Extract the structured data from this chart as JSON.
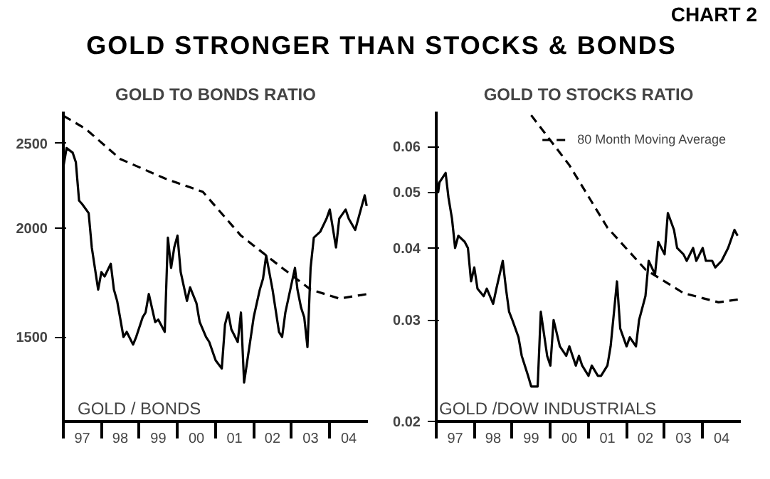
{
  "chart_data": [
    {
      "type": "line",
      "title": "GOLD TO BONDS RATIO",
      "annotations": [
        "CHART 2",
        "GOLD STRONGER THAN STOCKS & BONDS",
        "GOLD / BONDS"
      ],
      "log": "y",
      "grid": false,
      "legend": false,
      "marker": "none",
      "xlim": [
        "1997-01",
        "2005-01"
      ],
      "ylim": [
        1200,
        2720
      ],
      "yticks": [
        1500,
        2000,
        2500
      ],
      "xticks": [
        {
          "value": "1997-01",
          "label": null
        },
        {
          "value": "1997-07",
          "label": "97"
        },
        {
          "value": "1998-01",
          "label": null
        },
        {
          "value": "1998-07",
          "label": "98"
        },
        {
          "value": "1999-01",
          "label": null
        },
        {
          "value": "1999-07",
          "label": "99"
        },
        {
          "value": "2000-01",
          "label": null
        },
        {
          "value": "2000-07",
          "label": "00"
        },
        {
          "value": "2001-01",
          "label": null
        },
        {
          "value": "2001-07",
          "label": "01"
        },
        {
          "value": "2002-01",
          "label": null
        },
        {
          "value": "2002-07",
          "label": "02"
        },
        {
          "value": "2003-01",
          "label": null
        },
        {
          "value": "2003-07",
          "label": "03"
        },
        {
          "value": "2004-01",
          "label": null
        },
        {
          "value": "2004-07",
          "label": "04"
        }
      ],
      "series": [
        {
          "color": "#000000",
          "line_style": "solid",
          "x": [
            "1997-01",
            "1997-02",
            "1997-04",
            "1997-05",
            "1997-06",
            "1997-07",
            "1997-09",
            "1997-10",
            "1997-12",
            "1998-01",
            "1998-02",
            "1998-04",
            "1998-05",
            "1998-06",
            "1998-08",
            "1998-09",
            "1998-11",
            "1998-12",
            "1999-02",
            "1999-03",
            "1999-04",
            "1999-06",
            "1999-07",
            "1999-09",
            "1999-10",
            "1999-11",
            "1999-12",
            "2000-01",
            "2000-02",
            "2000-04",
            "2000-05",
            "2000-07",
            "2000-08",
            "2000-10",
            "2000-11",
            "2001-01",
            "2001-03",
            "2001-04",
            "2001-05",
            "2001-06",
            "2001-08",
            "2001-09",
            "2001-10",
            "2001-12",
            "2002-01",
            "2002-03",
            "2002-04",
            "2002-05",
            "2002-07",
            "2002-09",
            "2002-10",
            "2002-11",
            "2003-02",
            "2003-02-25",
            "2003-04",
            "2003-05",
            "2003-06",
            "2003-07",
            "2003-08",
            "2003-10",
            "2003-12",
            "2004-01",
            "2004-03",
            "2004-04",
            "2004-06",
            "2004-07",
            "2004-09",
            "2004-10",
            "2004-12",
            "2004-12-20"
          ],
          "values": [
            2350,
            2470,
            2440,
            2380,
            2150,
            2130,
            2080,
            1900,
            1700,
            1780,
            1760,
            1820,
            1700,
            1650,
            1500,
            1520,
            1470,
            1500,
            1580,
            1600,
            1680,
            1560,
            1570,
            1520,
            1950,
            1800,
            1900,
            1960,
            1780,
            1650,
            1710,
            1640,
            1560,
            1500,
            1480,
            1410,
            1380,
            1550,
            1600,
            1530,
            1480,
            1600,
            1330,
            1490,
            1580,
            1700,
            1750,
            1860,
            1700,
            1520,
            1500,
            1600,
            1800,
            1700,
            1620,
            1580,
            1460,
            1800,
            1950,
            1980,
            2050,
            2100,
            1900,
            2050,
            2100,
            2050,
            1990,
            2050,
            2180,
            2120
          ]
        },
        {
          "color": "#000000",
          "line_style": "dashed",
          "x": [
            "1997-01",
            "1997-08",
            "1998-07",
            "1999-09",
            "2000-09",
            "2001-09",
            "2002-10",
            "2003-07",
            "2004-04",
            "2004-12-28"
          ],
          "values": [
            2690,
            2600,
            2400,
            2280,
            2200,
            1960,
            1800,
            1700,
            1660,
            1680
          ]
        }
      ]
    },
    {
      "type": "line",
      "title": "GOLD TO STOCKS RATIO",
      "annotations": [
        "GOLD /DOW INDUSTRIALS"
      ],
      "log": "y",
      "grid": false,
      "legend": "top right",
      "marker": "none",
      "xlim": [
        "1997-01",
        "2005-01"
      ],
      "ylim": [
        0.02,
        0.069
      ],
      "yticks": [
        0.02,
        0.03,
        0.04,
        0.05,
        0.06
      ],
      "xticks": [
        {
          "value": "1997-01",
          "label": null
        },
        {
          "value": "1997-07",
          "label": "97"
        },
        {
          "value": "1998-01",
          "label": null
        },
        {
          "value": "1998-07",
          "label": "98"
        },
        {
          "value": "1999-01",
          "label": null
        },
        {
          "value": "1999-07",
          "label": "99"
        },
        {
          "value": "2000-01",
          "label": null
        },
        {
          "value": "2000-07",
          "label": "00"
        },
        {
          "value": "2001-01",
          "label": null
        },
        {
          "value": "2001-07",
          "label": "01"
        },
        {
          "value": "2002-01",
          "label": null
        },
        {
          "value": "2002-07",
          "label": "02"
        },
        {
          "value": "2003-01",
          "label": null
        },
        {
          "value": "2003-07",
          "label": "03"
        },
        {
          "value": "2004-01",
          "label": null
        },
        {
          "value": "2004-07",
          "label": "04"
        }
      ],
      "series": [
        {
          "color": "#000000",
          "line_style": "solid",
          "x": [
            "1997-01",
            "1997-01-20",
            "1997-02",
            "1997-04",
            "1997-04-28",
            "1997-06",
            "1997-07",
            "1997-08",
            "1997-10",
            "1997-11",
            "1997-12",
            "1998-01",
            "1998-02",
            "1998-04",
            "1998-05",
            "1998-07",
            "1998-08",
            "1998-10",
            "1998-11",
            "1998-12",
            "1999-01",
            "1999-03",
            "1999-04",
            "1999-06",
            "1999-07",
            "1999-09",
            "1999-10",
            "1999-12",
            "2000-01",
            "2000-02",
            "2000-04",
            "2000-06",
            "2000-07",
            "2000-09",
            "2000-10",
            "2000-11",
            "2001-01",
            "2001-02",
            "2001-04",
            "2001-05",
            "2001-07",
            "2001-08",
            "2001-10",
            "2001-11",
            "2002-01",
            "2002-02",
            "2002-04",
            "2002-05",
            "2002-07",
            "2002-08",
            "2002-10",
            "2002-11",
            "2003-01",
            "2003-02",
            "2003-04",
            "2003-05",
            "2003-07",
            "2003-08",
            "2003-10",
            "2003-11",
            "2004-01",
            "2004-02",
            "2004-04",
            "2004-05",
            "2004-07",
            "2004-09",
            "2004-11",
            "2004-12"
          ],
          "values": [
            0.053,
            0.05,
            0.052,
            0.054,
            0.049,
            0.045,
            0.04,
            0.042,
            0.041,
            0.04,
            0.035,
            0.037,
            0.034,
            0.033,
            0.034,
            0.032,
            0.034,
            0.038,
            0.034,
            0.031,
            0.03,
            0.028,
            0.026,
            0.024,
            0.023,
            0.023,
            0.031,
            0.026,
            0.025,
            0.03,
            0.027,
            0.026,
            0.027,
            0.025,
            0.026,
            0.025,
            0.024,
            0.025,
            0.024,
            0.024,
            0.025,
            0.027,
            0.035,
            0.029,
            0.027,
            0.028,
            0.027,
            0.03,
            0.033,
            0.038,
            0.036,
            0.041,
            0.039,
            0.046,
            0.043,
            0.04,
            0.039,
            0.038,
            0.04,
            0.038,
            0.04,
            0.038,
            0.038,
            0.037,
            0.038,
            0.04,
            0.043,
            0.042
          ]
        },
        {
          "name": "80 Month Moving Average",
          "color": "#000000",
          "line_style": "dashed",
          "x": [
            "1999-07",
            "2000-07",
            "2001-07",
            "2002-07",
            "2003-07",
            "2004-06",
            "2004-12-28"
          ],
          "values": [
            0.068,
            0.0557,
            0.0434,
            0.0367,
            0.0334,
            0.0322,
            0.0326
          ]
        }
      ]
    }
  ]
}
